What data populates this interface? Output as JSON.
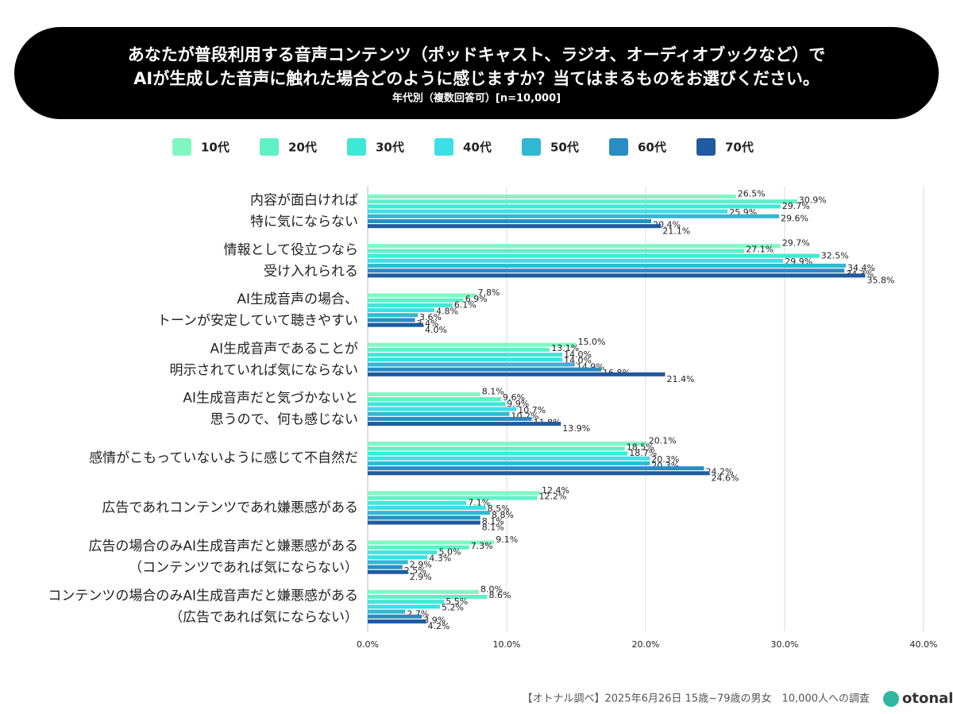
{
  "chart_data": {
    "type": "hbar",
    "title": [
      "あなたが普段利用する音声コンテンツ（ポッドキャスト、ラジオ、オーディオブックなど）で",
      "AIが生成した音声に触れた場合どのように感じますか？当てはまるものをお選びください。"
    ],
    "subtitle": "年代別（複数回答可）[n=10,000]",
    "footer": "【オトナル調べ】2025年6月26日 15歳~79歳の男女　10,000人への調査",
    "logo": "otonal",
    "categories": [
      [
        "内容が面白ければ",
        "特に気にならない"
      ],
      [
        "情報として役立つなら",
        "受け入れられる"
      ],
      [
        "AI生成音声の場合、",
        "トーンが安定していて聴きやすい"
      ],
      [
        "AI生成音声であることが",
        "明示されていれば気にならない"
      ],
      [
        "AI生成音声だと気づかないと",
        "思うので、何も感じない"
      ],
      [
        "感情がこもっていないように感じて不自然だ"
      ],
      [
        "広告であれコンテンツであれ嫌悪感がある"
      ],
      [
        "広告の場合のみAI生成音声だと嫌悪感がある",
        "（コンテンツであれば気にならない）"
      ],
      [
        "コンテンツの場合のみAI生成音声だと嫌悪感がある",
        "（広告であれば気にならない）"
      ]
    ],
    "series": [
      {
        "name": "10代",
        "color": "#80f7c3",
        "values": [
          26.5,
          29.7,
          7.8,
          15.0,
          8.1,
          20.1,
          12.4,
          9.1,
          8.0
        ],
        "value_labels": [
          "26.5%",
          "29.7%",
          "7.8%",
          "15.0%",
          "8.1%",
          "20.1%",
          "12.4%",
          "9.1%",
          "8.0%"
        ]
      },
      {
        "name": "20代",
        "color": "#5ff0c6",
        "values": [
          30.9,
          27.1,
          6.9,
          13.1,
          9.6,
          18.5,
          12.2,
          7.3,
          8.6
        ],
        "value_labels": [
          "30.9%",
          "27.1%",
          "6.9%",
          "13.1%",
          "9.6%",
          "18.5%",
          "12.2%",
          "7.3%",
          "8.6%"
        ]
      },
      {
        "name": "30代",
        "color": "#3fe8d6",
        "values": [
          29.7,
          32.5,
          6.1,
          14.0,
          9.9,
          18.7,
          7.1,
          5.0,
          5.5
        ],
        "value_labels": [
          "29.7%",
          "32.5%",
          "6.1%",
          "14.0%",
          "9.9%",
          "18.7%",
          "7.1%",
          "5.0%",
          "5.5%"
        ]
      },
      {
        "name": "40代",
        "color": "#3cdfe6",
        "values": [
          25.9,
          29.9,
          4.8,
          14.0,
          10.7,
          20.3,
          8.5,
          4.3,
          5.2
        ],
        "value_labels": [
          "25.9%",
          "29.9%",
          "4.8%",
          "14.0%",
          "10.7%",
          "20.3%",
          "8.5%",
          "4.3%",
          "5.2%"
        ]
      },
      {
        "name": "50代",
        "color": "#31b8d2",
        "values": [
          29.6,
          34.4,
          3.6,
          14.9,
          10.2,
          20.3,
          8.8,
          2.9,
          2.7
        ],
        "value_labels": [
          "29.6%",
          "34.4%",
          "3.6%",
          "14.9%",
          "10.2%",
          "20.3%",
          "8.8%",
          "2.9%",
          "2.7%"
        ]
      },
      {
        "name": "60代",
        "color": "#2b8cc2",
        "values": [
          20.4,
          34.3,
          3.4,
          16.8,
          11.8,
          24.2,
          8.1,
          2.5,
          3.9
        ],
        "value_labels": [
          "20.4%",
          "34.3%",
          "3.4%",
          "16.8%",
          "11.8%",
          "24.2%",
          "8.1%",
          "2.5%",
          "3.9%"
        ]
      },
      {
        "name": "70代",
        "color": "#1f5b9e",
        "values": [
          21.1,
          35.8,
          4.0,
          21.4,
          13.9,
          24.6,
          8.1,
          2.9,
          4.2
        ],
        "value_labels": [
          "21.1%",
          "35.8%",
          "4.0%",
          "21.4%",
          "13.9%",
          "24.6%",
          "8.1%",
          "2.9%",
          "4.2%"
        ]
      }
    ],
    "xlim": [
      0,
      40
    ],
    "xticks": [
      {
        "value": 0,
        "label": "0.0%"
      },
      {
        "value": 10,
        "label": "10.0%"
      },
      {
        "value": 20,
        "label": "20.0%"
      },
      {
        "value": 30,
        "label": "30.0%"
      },
      {
        "value": 40,
        "label": "40.0%"
      }
    ],
    "grid": true
  }
}
